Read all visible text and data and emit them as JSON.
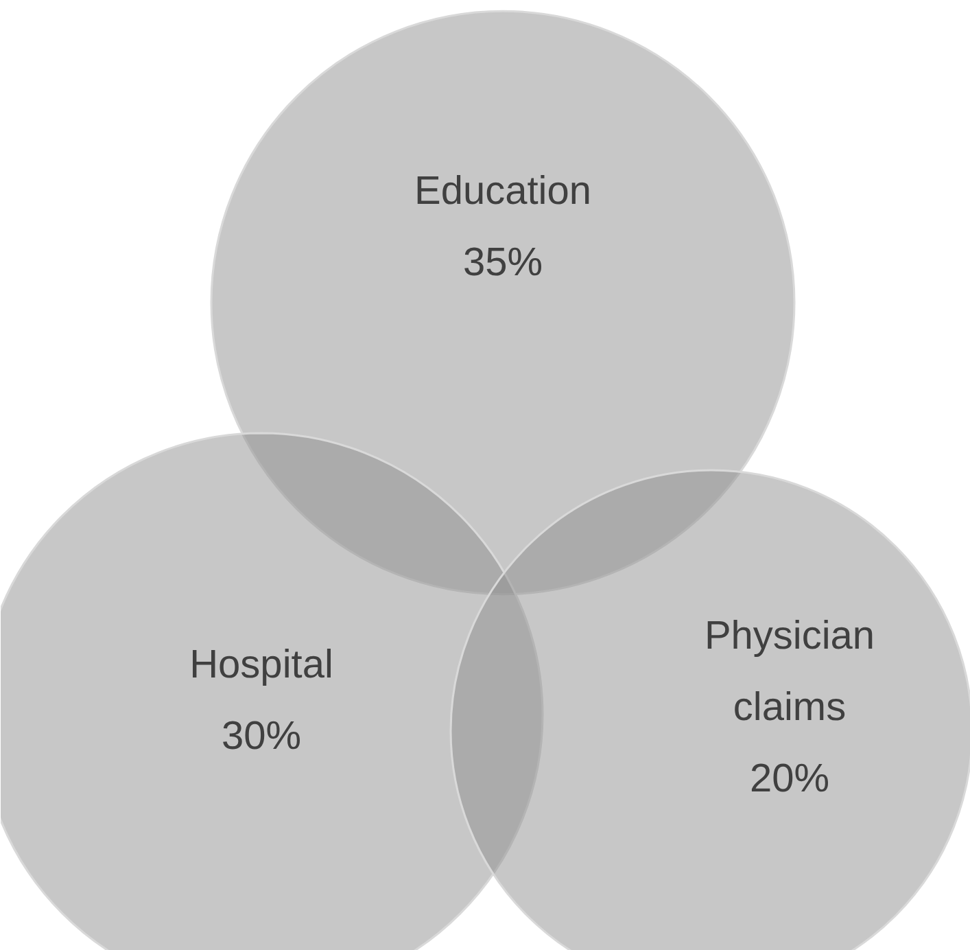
{
  "chart_data": {
    "type": "other",
    "categories": [
      "Education",
      "Hospital",
      "Physician claims"
    ],
    "values": [
      35,
      30,
      20
    ],
    "value_labels": [
      "35%",
      "30%",
      "20%"
    ],
    "colors": [
      "#8f8f8f",
      "#8f8f8f",
      "#8f8f8f"
    ]
  }
}
